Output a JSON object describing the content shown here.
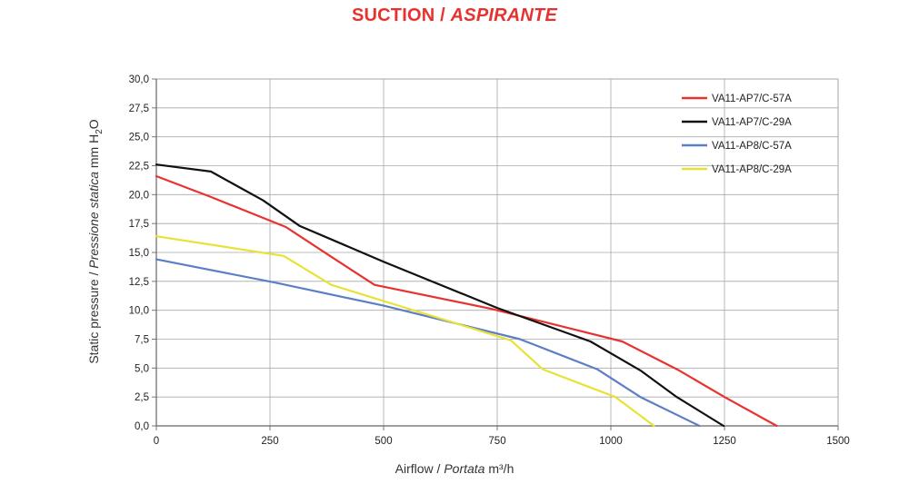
{
  "title": {
    "main": "SUCTION / ",
    "italic": "ASPIRANTE"
  },
  "xlabel": {
    "main": "Airflow / ",
    "italic": "Portata",
    "unit": " m³/h"
  },
  "ylabel": {
    "main": "Static pressure / ",
    "italic": "Pressione statica",
    "unit": " mm H",
    "sub": "2",
    "tail": "O"
  },
  "chart_data": {
    "type": "line",
    "xlim": [
      0,
      1500
    ],
    "ylim": [
      0,
      30
    ],
    "xticks": [
      0,
      250,
      500,
      750,
      1000,
      1250,
      1500
    ],
    "xtick_labels": [
      "0",
      "250",
      "500",
      "750",
      "1000",
      "1250",
      "1500"
    ],
    "yticks": [
      0,
      2.5,
      5,
      7.5,
      10,
      12.5,
      15,
      17.5,
      20,
      22.5,
      25,
      27.5,
      30
    ],
    "ytick_labels": [
      "0,0",
      "2,5",
      "5,0",
      "7,5",
      "10,0",
      "12,5",
      "15,0",
      "17,5",
      "20,0",
      "22,5",
      "25,0",
      "27,5",
      "30,0"
    ],
    "grid": true,
    "legend_position": "top-right",
    "series": [
      {
        "name": "VA11-AP7/C-57A",
        "color": "#e8322f",
        "points": [
          [
            0,
            21.6
          ],
          [
            120,
            19.8
          ],
          [
            285,
            17.2
          ],
          [
            390,
            14.5
          ],
          [
            480,
            12.2
          ],
          [
            740,
            10.1
          ],
          [
            1025,
            7.3
          ],
          [
            1150,
            4.8
          ],
          [
            1250,
            2.5
          ],
          [
            1365,
            0
          ]
        ]
      },
      {
        "name": "VA11-AP7/C-29A",
        "color": "#111111",
        "points": [
          [
            0,
            22.6
          ],
          [
            120,
            22.0
          ],
          [
            235,
            19.5
          ],
          [
            315,
            17.3
          ],
          [
            500,
            14.2
          ],
          [
            750,
            10.2
          ],
          [
            955,
            7.3
          ],
          [
            1065,
            4.8
          ],
          [
            1145,
            2.5
          ],
          [
            1248,
            0
          ]
        ]
      },
      {
        "name": "VA11-AP8/C-57A",
        "color": "#5b7fc6",
        "points": [
          [
            0,
            14.4
          ],
          [
            260,
            12.4
          ],
          [
            500,
            10.4
          ],
          [
            800,
            7.5
          ],
          [
            970,
            4.9
          ],
          [
            1065,
            2.5
          ],
          [
            1195,
            0
          ]
        ]
      },
      {
        "name": "VA11-AP8/C-29A",
        "color": "#e8e236",
        "points": [
          [
            0,
            16.4
          ],
          [
            280,
            14.7
          ],
          [
            385,
            12.2
          ],
          [
            500,
            10.8
          ],
          [
            780,
            7.4
          ],
          [
            850,
            4.9
          ],
          [
            1010,
            2.5
          ],
          [
            1095,
            0
          ]
        ]
      }
    ]
  }
}
